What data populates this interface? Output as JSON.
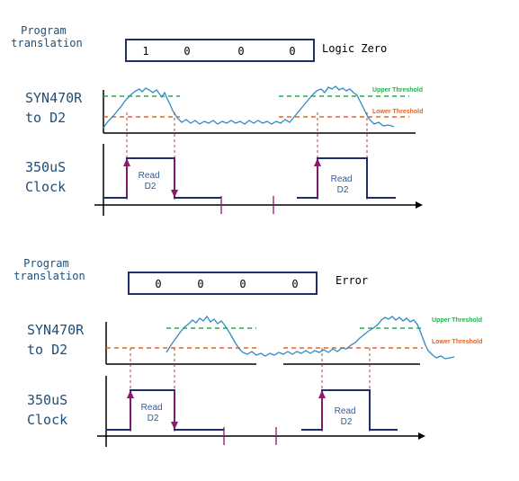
{
  "colors": {
    "axis": "#000000",
    "label_blue": "#1f4e79",
    "box_navy": "#1f2d6e",
    "signal": "#2e8bc0",
    "upper_threshold": "#22b14c",
    "lower_threshold": "#e8631a",
    "read_box": "#1f2d6e",
    "read_text": "#2e5a9c",
    "arrow": "#8b1a6b",
    "tick": "#8b1a6b",
    "dash": "#c0392b",
    "text": "#000000"
  },
  "panels": [
    {
      "program_label": "Program\ntranslation",
      "program_label_lines": [
        "Program",
        "translation"
      ],
      "bits": [
        "1",
        "0",
        "0",
        "0"
      ],
      "result": "Logic Zero",
      "signal_label_lines": [
        "SYN470R",
        "to D2"
      ],
      "clock_label_lines": [
        "350uS",
        "Clock"
      ],
      "upper_threshold_label": "Upper Threshold",
      "lower_threshold_label": "Lower Threshold",
      "read_labels": [
        [
          "Read",
          "D2"
        ],
        [
          "Read",
          "D2"
        ]
      ]
    },
    {
      "program_label_lines": [
        "Program",
        "translation"
      ],
      "bits": [
        "0",
        "0",
        "0",
        "0"
      ],
      "result": "Error",
      "signal_label_lines": [
        "SYN470R",
        "to D2"
      ],
      "clock_label_lines": [
        "350uS",
        "Clock"
      ],
      "upper_threshold_label": "Upper Threshold",
      "lower_threshold_label": "Lower Threshold",
      "read_labels": [
        [
          "Read",
          "D2"
        ],
        [
          "Read",
          "D2"
        ]
      ]
    }
  ]
}
